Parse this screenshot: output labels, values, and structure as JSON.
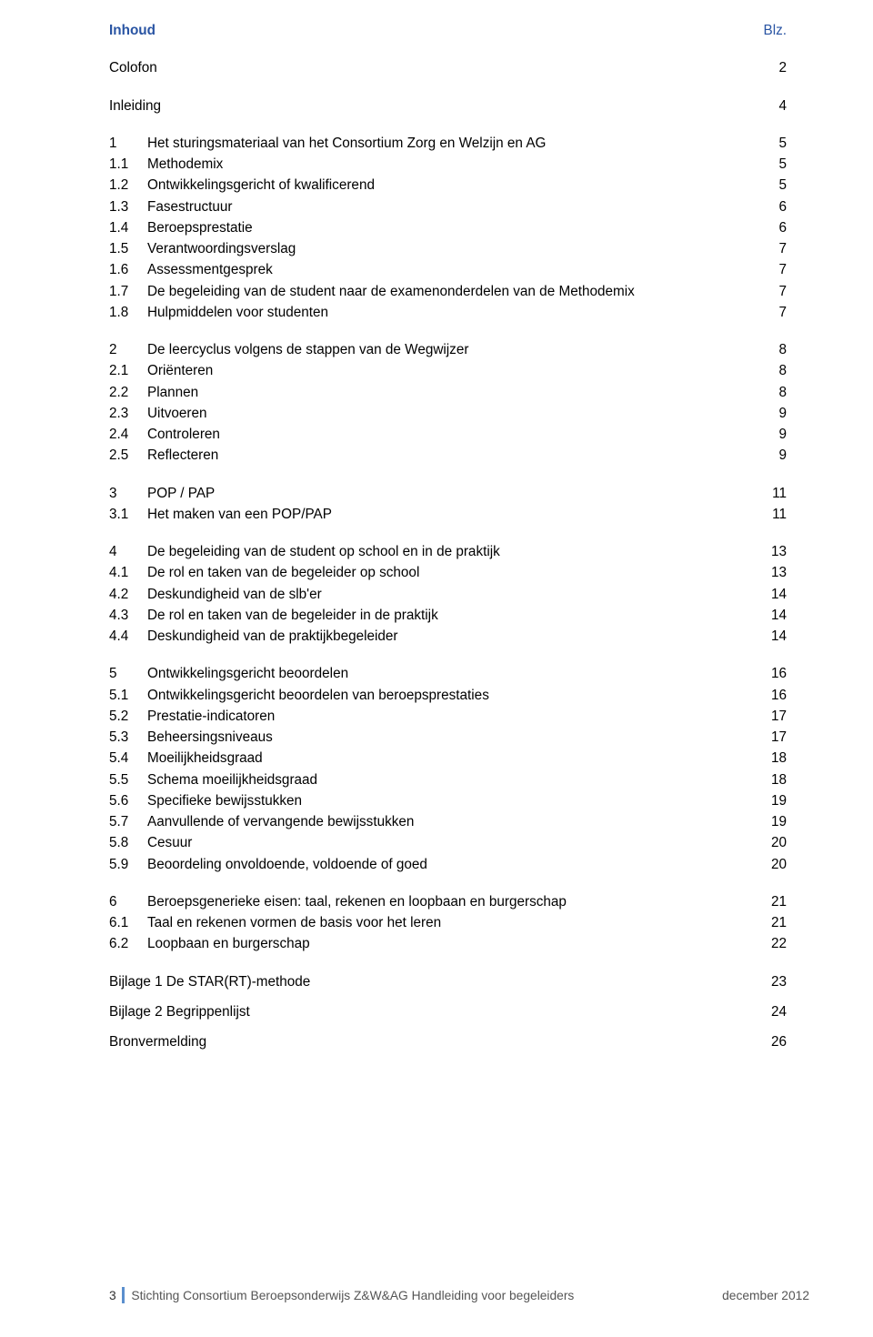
{
  "colors": {
    "heading": "#2954a3",
    "text": "#000000",
    "footer": "#555555",
    "footer_bar": "#5b8fce",
    "background": "#ffffff"
  },
  "header": {
    "left": "Inhoud",
    "right": "Blz."
  },
  "groups": [
    {
      "gap": 18,
      "rows": [
        {
          "n": "",
          "t": "Colofon",
          "p": "2"
        }
      ]
    },
    {
      "gap": 18,
      "rows": [
        {
          "n": "",
          "t": "Inleiding",
          "p": "4"
        }
      ]
    },
    {
      "gap": 18,
      "rows": [
        {
          "n": "1",
          "t": "Het sturingsmateriaal van het Consortium Zorg en Welzijn en AG",
          "p": "5"
        },
        {
          "n": "1.1",
          "t": "Methodemix",
          "p": "5"
        },
        {
          "n": "1.2",
          "t": "Ontwikkelingsgericht of kwalificerend",
          "p": "5"
        },
        {
          "n": "1.3",
          "t": "Fasestructuur",
          "p": "6"
        },
        {
          "n": "1.4",
          "t": "Beroepsprestatie",
          "p": "6"
        },
        {
          "n": "1.5",
          "t": "Verantwoordingsverslag",
          "p": "7"
        },
        {
          "n": "1.6",
          "t": "Assessmentgesprek",
          "p": "7"
        },
        {
          "n": "1.7",
          "t": "De begeleiding van de student naar de examenonderdelen van de Methodemix",
          "p": "7"
        },
        {
          "n": "1.8",
          "t": "Hulpmiddelen voor studenten",
          "p": "7"
        }
      ]
    },
    {
      "gap": 18,
      "rows": [
        {
          "n": "2",
          "t": "De leercyclus  volgens de stappen van de Wegwijzer",
          "p": "8"
        },
        {
          "n": "2.1",
          "t": "Oriënteren",
          "p": "8"
        },
        {
          "n": "2.2",
          "t": "Plannen",
          "p": "8"
        },
        {
          "n": "2.3",
          "t": "Uitvoeren",
          "p": "9"
        },
        {
          "n": "2.4",
          "t": "Controleren",
          "p": "9"
        },
        {
          "n": "2.5",
          "t": "Reflecteren",
          "p": "9"
        }
      ]
    },
    {
      "gap": 18,
      "rows": [
        {
          "n": "3",
          "t": "POP / PAP",
          "p": "11"
        },
        {
          "n": "3.1",
          "t": "Het maken van een POP/PAP",
          "p": "11"
        }
      ]
    },
    {
      "gap": 18,
      "rows": [
        {
          "n": "4",
          "t": "De begeleiding van de student op school en in de praktijk",
          "p": "13"
        },
        {
          "n": "4.1",
          "t": "De rol en taken van de begeleider op school",
          "p": "13"
        },
        {
          "n": "4.2",
          "t": "Deskundigheid van de slb'er",
          "p": "14"
        },
        {
          "n": "4.3",
          "t": "De rol en taken van de begeleider in de praktijk",
          "p": "14"
        },
        {
          "n": "4.4",
          "t": "Deskundigheid van de praktijkbegeleider",
          "p": "14"
        }
      ]
    },
    {
      "gap": 18,
      "rows": [
        {
          "n": "5",
          "t": "Ontwikkelingsgericht beoordelen",
          "p": "16"
        },
        {
          "n": "5.1",
          "t": "Ontwikkelingsgericht beoordelen van beroepsprestaties",
          "p": "16"
        },
        {
          "n": "5.2",
          "t": "Prestatie-indicatoren",
          "p": "17"
        },
        {
          "n": "5.3",
          "t": "Beheersingsniveaus",
          "p": "17"
        },
        {
          "n": "5.4",
          "t": "Moeilijkheidsgraad",
          "p": "18"
        },
        {
          "n": "5.5",
          "t": "Schema moeilijkheidsgraad",
          "p": "18"
        },
        {
          "n": "5.6",
          "t": "Specifieke bewijsstukken",
          "p": "19"
        },
        {
          "n": "5.7",
          "t": "Aanvullende of vervangende bewijsstukken",
          "p": "19"
        },
        {
          "n": "5.8",
          "t": "Cesuur",
          "p": "20"
        },
        {
          "n": "5.9",
          "t": "Beoordeling onvoldoende, voldoende of goed",
          "p": "20"
        }
      ]
    },
    {
      "gap": 18,
      "rows": [
        {
          "n": "6",
          "t": "Beroepsgenerieke eisen: taal, rekenen en loopbaan en burgerschap",
          "p": "21"
        },
        {
          "n": "6.1",
          "t": "Taal en rekenen vormen de basis voor het leren",
          "p": "21"
        },
        {
          "n": "6.2",
          "t": "Loopbaan en burgerschap",
          "p": "22"
        }
      ]
    },
    {
      "gap": 10,
      "rows": [
        {
          "n": "",
          "t": "Bijlage 1 De STAR(RT)-methode",
          "p": "23"
        }
      ]
    },
    {
      "gap": 10,
      "rows": [
        {
          "n": "",
          "t": "Bijlage 2 Begrippenlijst",
          "p": "24"
        }
      ]
    },
    {
      "gap": 10,
      "rows": [
        {
          "n": "",
          "t": "Bronvermelding",
          "p": "26"
        }
      ]
    }
  ],
  "footer": {
    "page_number": "3",
    "center": "Stichting Consortium Beroepsonderwijs Z&W&AG   Handleiding voor begeleiders",
    "right": "december 2012"
  }
}
